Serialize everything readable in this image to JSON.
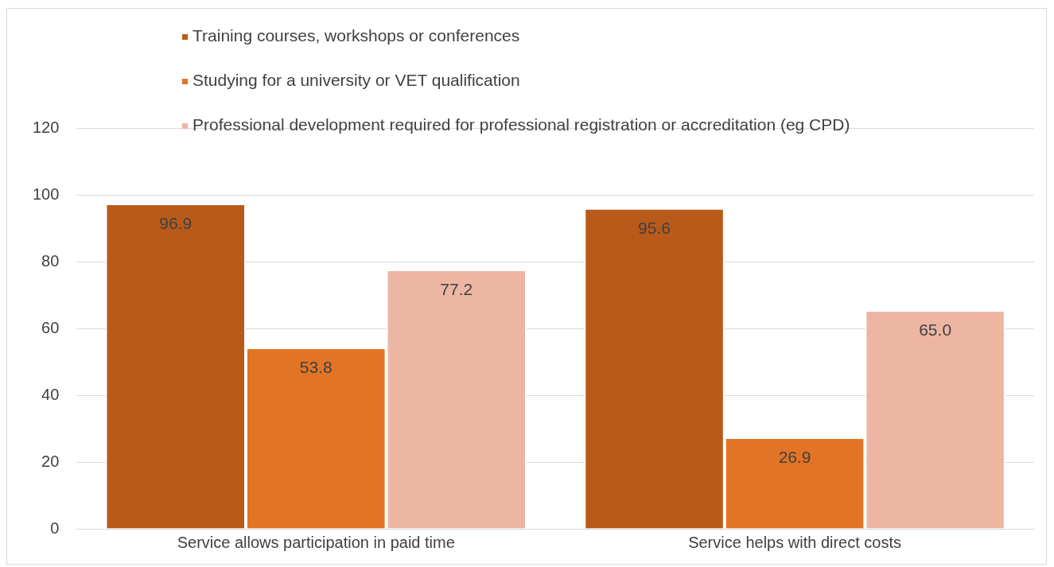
{
  "chart_data": {
    "type": "bar",
    "categories": [
      "Service allows participation in paid time",
      "Service helps with direct costs"
    ],
    "series": [
      {
        "name": "Training courses, workshops or conferences",
        "color": "#b95a1a",
        "values": [
          96.9,
          95.6
        ],
        "value_labels": [
          "96.9",
          "95.6"
        ]
      },
      {
        "name": "Studying for a university or VET qualification",
        "color": "#e27426",
        "values": [
          53.8,
          26.9
        ],
        "value_labels": [
          "53.8",
          "26.9"
        ]
      },
      {
        "name": "Professional development required for professional registration or accreditation (eg CPD)",
        "color": "#edb6a3",
        "values": [
          77.2,
          65.0
        ],
        "value_labels": [
          "77.2",
          "65.0"
        ]
      }
    ],
    "ylim": [
      0,
      120
    ],
    "yticks": [
      0,
      20,
      40,
      60,
      80,
      100,
      120
    ],
    "grid": "y",
    "legend": "top"
  }
}
